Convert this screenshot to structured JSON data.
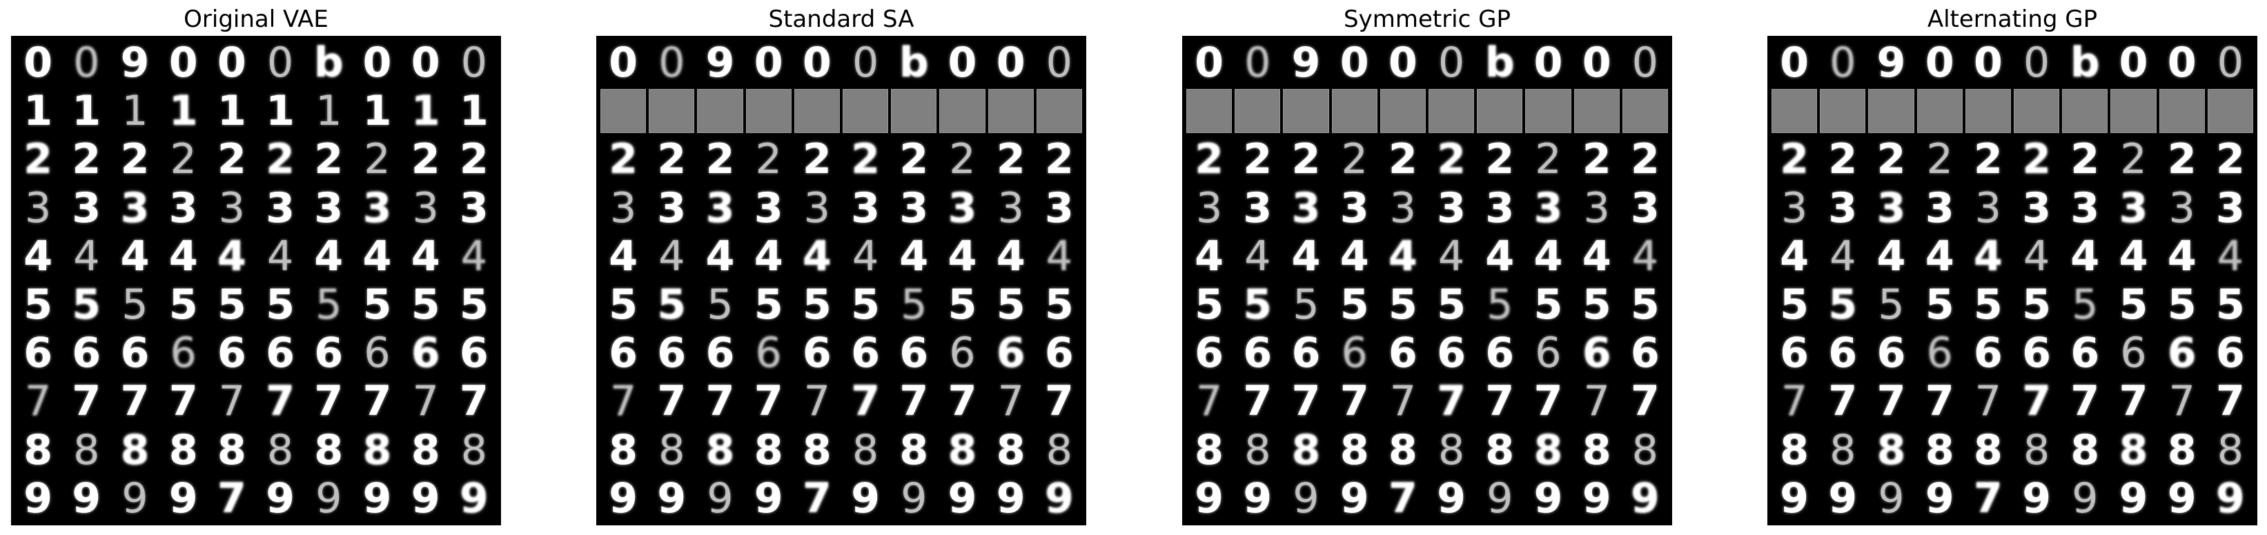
{
  "panels": [
    {
      "title": "Original VAE",
      "rows": [
        [
          "0",
          "0",
          "9",
          "0",
          "0",
          "0",
          "b",
          "0",
          "0",
          "0"
        ],
        [
          "1",
          "1",
          "1",
          "1",
          "1",
          "1",
          "1",
          "1",
          "1",
          "1"
        ],
        [
          "2",
          "2",
          "2",
          "2",
          "2",
          "2",
          "2",
          "2",
          "2",
          "2"
        ],
        [
          "3",
          "3",
          "3",
          "3",
          "3",
          "3",
          "3",
          "3",
          "3",
          "3"
        ],
        [
          "4",
          "4",
          "4",
          "4",
          "4",
          "4",
          "4",
          "4",
          "4",
          "4"
        ],
        [
          "5",
          "5",
          "5",
          "5",
          "5",
          "5",
          "5",
          "5",
          "5",
          "5"
        ],
        [
          "6",
          "6",
          "6",
          "6",
          "6",
          "6",
          "6",
          "6",
          "6",
          "6"
        ],
        [
          "7",
          "7",
          "7",
          "7",
          "7",
          "7",
          "7",
          "7",
          "7",
          "7"
        ],
        [
          "8",
          "8",
          "8",
          "8",
          "8",
          "8",
          "8",
          "8",
          "8",
          "8"
        ],
        [
          "9",
          "9",
          "9",
          "9",
          "7",
          "9",
          "9",
          "9",
          "9",
          "9"
        ]
      ],
      "erased_row": -1
    },
    {
      "title": "Standard SA",
      "rows": [
        [
          "0",
          "0",
          "9",
          "0",
          "0",
          "0",
          "b",
          "0",
          "0",
          "0"
        ],
        [
          "",
          "",
          "",
          "",
          "",
          "",
          "",
          "",
          "",
          ""
        ],
        [
          "2",
          "2",
          "2",
          "2",
          "2",
          "2",
          "2",
          "2",
          "2",
          "2"
        ],
        [
          "3",
          "3",
          "3",
          "3",
          "3",
          "3",
          "3",
          "3",
          "3",
          "3"
        ],
        [
          "4",
          "4",
          "4",
          "4",
          "4",
          "4",
          "4",
          "4",
          "4",
          "4"
        ],
        [
          "5",
          "5",
          "5",
          "5",
          "5",
          "5",
          "5",
          "5",
          "5",
          "5"
        ],
        [
          "6",
          "6",
          "6",
          "6",
          "6",
          "6",
          "6",
          "6",
          "6",
          "6"
        ],
        [
          "7",
          "7",
          "7",
          "7",
          "7",
          "7",
          "7",
          "7",
          "7",
          "7"
        ],
        [
          "8",
          "8",
          "8",
          "8",
          "8",
          "8",
          "8",
          "8",
          "8",
          "8"
        ],
        [
          "9",
          "9",
          "9",
          "9",
          "7",
          "9",
          "9",
          "9",
          "9",
          "9"
        ]
      ],
      "erased_row": 1
    },
    {
      "title": "Symmetric GP",
      "rows": [
        [
          "0",
          "0",
          "9",
          "0",
          "0",
          "0",
          "b",
          "0",
          "0",
          "0"
        ],
        [
          "",
          "",
          "",
          "",
          "",
          "",
          "",
          "",
          "",
          ""
        ],
        [
          "2",
          "2",
          "2",
          "2",
          "2",
          "2",
          "2",
          "2",
          "2",
          "2"
        ],
        [
          "3",
          "3",
          "3",
          "3",
          "3",
          "3",
          "3",
          "3",
          "3",
          "3"
        ],
        [
          "4",
          "4",
          "4",
          "4",
          "4",
          "4",
          "4",
          "4",
          "4",
          "4"
        ],
        [
          "5",
          "5",
          "5",
          "5",
          "5",
          "5",
          "5",
          "5",
          "5",
          "5"
        ],
        [
          "6",
          "6",
          "6",
          "6",
          "6",
          "6",
          "6",
          "6",
          "6",
          "6"
        ],
        [
          "7",
          "7",
          "7",
          "7",
          "7",
          "7",
          "7",
          "7",
          "7",
          "7"
        ],
        [
          "8",
          "8",
          "8",
          "8",
          "8",
          "8",
          "8",
          "8",
          "8",
          "8"
        ],
        [
          "9",
          "9",
          "9",
          "9",
          "7",
          "9",
          "9",
          "9",
          "9",
          "9"
        ]
      ],
      "erased_row": 1
    },
    {
      "title": "Alternating GP",
      "rows": [
        [
          "0",
          "0",
          "9",
          "0",
          "0",
          "0",
          "b",
          "0",
          "0",
          "0"
        ],
        [
          "",
          "",
          "",
          "",
          "",
          "",
          "",
          "",
          "",
          ""
        ],
        [
          "2",
          "2",
          "2",
          "2",
          "2",
          "2",
          "2",
          "2",
          "2",
          "2"
        ],
        [
          "3",
          "3",
          "3",
          "3",
          "3",
          "3",
          "3",
          "3",
          "3",
          "3"
        ],
        [
          "4",
          "4",
          "4",
          "4",
          "4",
          "4",
          "4",
          "4",
          "4",
          "4"
        ],
        [
          "5",
          "5",
          "5",
          "5",
          "5",
          "5",
          "5",
          "5",
          "5",
          "5"
        ],
        [
          "6",
          "6",
          "6",
          "6",
          "6",
          "6",
          "6",
          "6",
          "6",
          "6"
        ],
        [
          "7",
          "7",
          "7",
          "7",
          "7",
          "7",
          "7",
          "7",
          "7",
          "7"
        ],
        [
          "8",
          "8",
          "8",
          "8",
          "8",
          "8",
          "8",
          "8",
          "8",
          "8"
        ],
        [
          "9",
          "9",
          "9",
          "9",
          "7",
          "9",
          "9",
          "9",
          "9",
          "9"
        ]
      ],
      "erased_row": 1
    }
  ],
  "colors": {
    "grid_background": "#000000",
    "digit": "#ffffff",
    "erased_cell": "#808080",
    "title_text": "#000000"
  }
}
